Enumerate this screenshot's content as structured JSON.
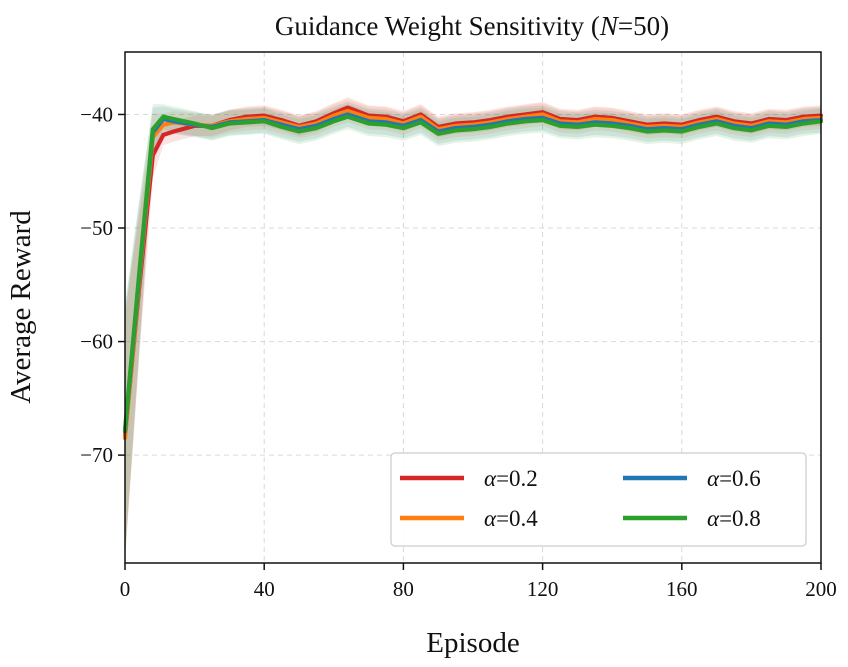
{
  "chart_data": {
    "type": "line",
    "title": {
      "prefix": "Guidance Weight Sensitivity (",
      "var": "N",
      "suffix": "=50)"
    },
    "xlabel": "Episode",
    "ylabel": "Average Reward",
    "xlim": [
      0,
      200
    ],
    "ylim": [
      -79.5,
      -34.5
    ],
    "xticks": [
      0,
      40,
      80,
      120,
      160,
      200
    ],
    "yticks": [
      -40,
      -50,
      -60,
      -70
    ],
    "xtick_labels": [
      "0",
      "40",
      "80",
      "120",
      "160",
      "200"
    ],
    "ytick_labels": [
      "−40",
      "−50",
      "−60",
      "−70"
    ],
    "grid": true,
    "legend_position": "lower-right",
    "series": [
      {
        "name": "α = 0.2",
        "label_var": "α",
        "label_rest": "=0.2",
        "color": "#d62728",
        "x": [
          0,
          4,
          8,
          11,
          14,
          20,
          25,
          30,
          35,
          40,
          45,
          50,
          55,
          60,
          64,
          70,
          75,
          80,
          85,
          90,
          95,
          100,
          105,
          110,
          115,
          120,
          125,
          130,
          135,
          140,
          145,
          150,
          155,
          160,
          165,
          170,
          175,
          180,
          185,
          190,
          195,
          200
        ],
        "values": [
          -68.3,
          -55.5,
          -43.6,
          -41.8,
          -41.5,
          -41.0,
          -41.0,
          -40.5,
          -40.2,
          -40.1,
          -40.5,
          -41.0,
          -40.6,
          -39.9,
          -39.4,
          -40.1,
          -40.2,
          -40.6,
          -40.0,
          -41.1,
          -40.8,
          -40.7,
          -40.5,
          -40.2,
          -40.0,
          -39.8,
          -40.4,
          -40.5,
          -40.2,
          -40.3,
          -40.6,
          -40.9,
          -40.8,
          -40.9,
          -40.5,
          -40.2,
          -40.6,
          -40.8,
          -40.4,
          -40.5,
          -40.2,
          -40.1
        ],
        "band": 0.9
      },
      {
        "name": "α = 0.4",
        "label_var": "α",
        "label_rest": "=0.4",
        "color": "#ff7f0e",
        "x": [
          0,
          4,
          8,
          11,
          14,
          20,
          25,
          30,
          35,
          40,
          45,
          50,
          55,
          60,
          64,
          70,
          75,
          80,
          85,
          90,
          95,
          100,
          105,
          110,
          115,
          120,
          125,
          130,
          135,
          140,
          145,
          150,
          155,
          160,
          165,
          170,
          175,
          180,
          185,
          190,
          195,
          200
        ],
        "values": [
          -68.5,
          -55.0,
          -42.0,
          -40.9,
          -40.7,
          -40.9,
          -41.0,
          -40.6,
          -40.4,
          -40.3,
          -40.7,
          -41.1,
          -40.8,
          -40.1,
          -39.7,
          -40.3,
          -40.4,
          -40.8,
          -40.2,
          -41.3,
          -41.0,
          -40.9,
          -40.7,
          -40.4,
          -40.2,
          -40.0,
          -40.6,
          -40.7,
          -40.4,
          -40.5,
          -40.8,
          -41.1,
          -41.0,
          -41.1,
          -40.7,
          -40.4,
          -40.8,
          -41.0,
          -40.6,
          -40.7,
          -40.4,
          -40.3
        ],
        "band": 1.0
      },
      {
        "name": "α = 0.6",
        "label_var": "α",
        "label_rest": "=0.6",
        "color": "#1f77b4",
        "x": [
          0,
          4,
          8,
          11,
          14,
          20,
          25,
          30,
          35,
          40,
          45,
          50,
          55,
          60,
          64,
          70,
          75,
          80,
          85,
          90,
          95,
          100,
          105,
          110,
          115,
          120,
          125,
          130,
          135,
          140,
          145,
          150,
          155,
          160,
          165,
          170,
          175,
          180,
          185,
          190,
          195,
          200
        ],
        "values": [
          -67.9,
          -54.6,
          -41.6,
          -40.4,
          -40.6,
          -40.9,
          -41.1,
          -40.7,
          -40.6,
          -40.5,
          -40.9,
          -41.3,
          -41.0,
          -40.4,
          -40.0,
          -40.6,
          -40.7,
          -41.0,
          -40.5,
          -41.5,
          -41.2,
          -41.1,
          -40.9,
          -40.6,
          -40.4,
          -40.3,
          -40.8,
          -40.9,
          -40.7,
          -40.8,
          -41.0,
          -41.3,
          -41.2,
          -41.3,
          -40.9,
          -40.6,
          -41.0,
          -41.2,
          -40.8,
          -40.9,
          -40.6,
          -40.5
        ],
        "band": 1.1
      },
      {
        "name": "α = 0.8",
        "label_var": "α",
        "label_rest": "=0.8",
        "color": "#2ca02c",
        "x": [
          0,
          4,
          8,
          11,
          14,
          20,
          25,
          30,
          35,
          40,
          45,
          50,
          55,
          60,
          64,
          70,
          75,
          80,
          85,
          90,
          95,
          100,
          105,
          110,
          115,
          120,
          125,
          130,
          135,
          140,
          145,
          150,
          155,
          160,
          165,
          170,
          175,
          180,
          185,
          190,
          195,
          200
        ],
        "values": [
          -67.8,
          -54.3,
          -41.3,
          -40.2,
          -40.4,
          -40.8,
          -41.2,
          -40.8,
          -40.7,
          -40.6,
          -41.1,
          -41.5,
          -41.2,
          -40.6,
          -40.2,
          -40.8,
          -40.9,
          -41.2,
          -40.7,
          -41.7,
          -41.4,
          -41.3,
          -41.1,
          -40.8,
          -40.6,
          -40.5,
          -41.0,
          -41.1,
          -40.9,
          -41.0,
          -41.2,
          -41.5,
          -41.4,
          -41.5,
          -41.1,
          -40.8,
          -41.2,
          -41.4,
          -41.0,
          -41.1,
          -40.8,
          -40.6
        ],
        "band": 1.1
      }
    ]
  }
}
